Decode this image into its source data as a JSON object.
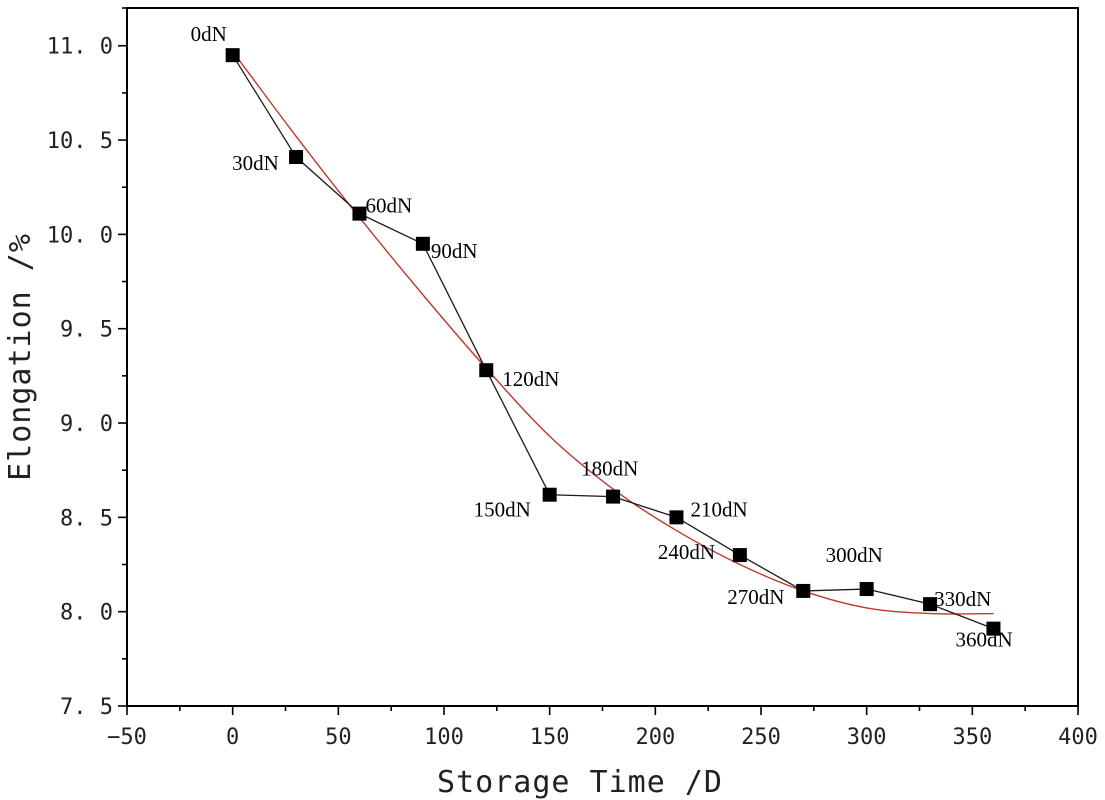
{
  "chart_data": {
    "type": "line",
    "title": "",
    "xlabel": "Storage Time /D",
    "ylabel": "Elongation /%",
    "xlim": [
      -50,
      400
    ],
    "ylim": [
      7.5,
      11.2
    ],
    "xticks": [
      -50,
      0,
      50,
      100,
      150,
      200,
      250,
      300,
      350,
      400
    ],
    "yticks": [
      7.5,
      8.0,
      8.5,
      9.0,
      9.5,
      10.0,
      10.5,
      11.0
    ],
    "xtick_labels": [
      "−50",
      "0",
      "50",
      "100",
      "150",
      "200",
      "250",
      "300",
      "350",
      "400"
    ],
    "ytick_labels": [
      "7. 5",
      "8. 0",
      "8. 5",
      "9. 0",
      "9. 5",
      "10. 0",
      "10. 5",
      "11. 0"
    ],
    "grid": false,
    "series": [
      {
        "color": "#000000",
        "marker": "square",
        "x": [
          0,
          30,
          60,
          90,
          120,
          150,
          180,
          210,
          240,
          270,
          300,
          330,
          360
        ],
        "y": [
          10.95,
          10.41,
          10.11,
          9.95,
          9.28,
          8.62,
          8.61,
          8.5,
          8.3,
          8.11,
          8.12,
          8.04,
          7.91
        ],
        "labels": [
          "0dN",
          "30dN",
          "60dN",
          "90dN",
          "120dN",
          "150dN",
          "180dN",
          "210dN",
          "240dN",
          "270dN",
          "300dN",
          "330dN",
          "360dN"
        ]
      },
      {
        "color": "#c0392b",
        "style": "smooth fit curve",
        "x": [
          0,
          30,
          60,
          90,
          120,
          150,
          180,
          210,
          240,
          270,
          300,
          330,
          360
        ],
        "y": [
          10.97,
          10.52,
          10.09,
          9.68,
          9.29,
          8.93,
          8.65,
          8.43,
          8.25,
          8.11,
          8.02,
          7.99,
          7.99
        ]
      }
    ]
  }
}
